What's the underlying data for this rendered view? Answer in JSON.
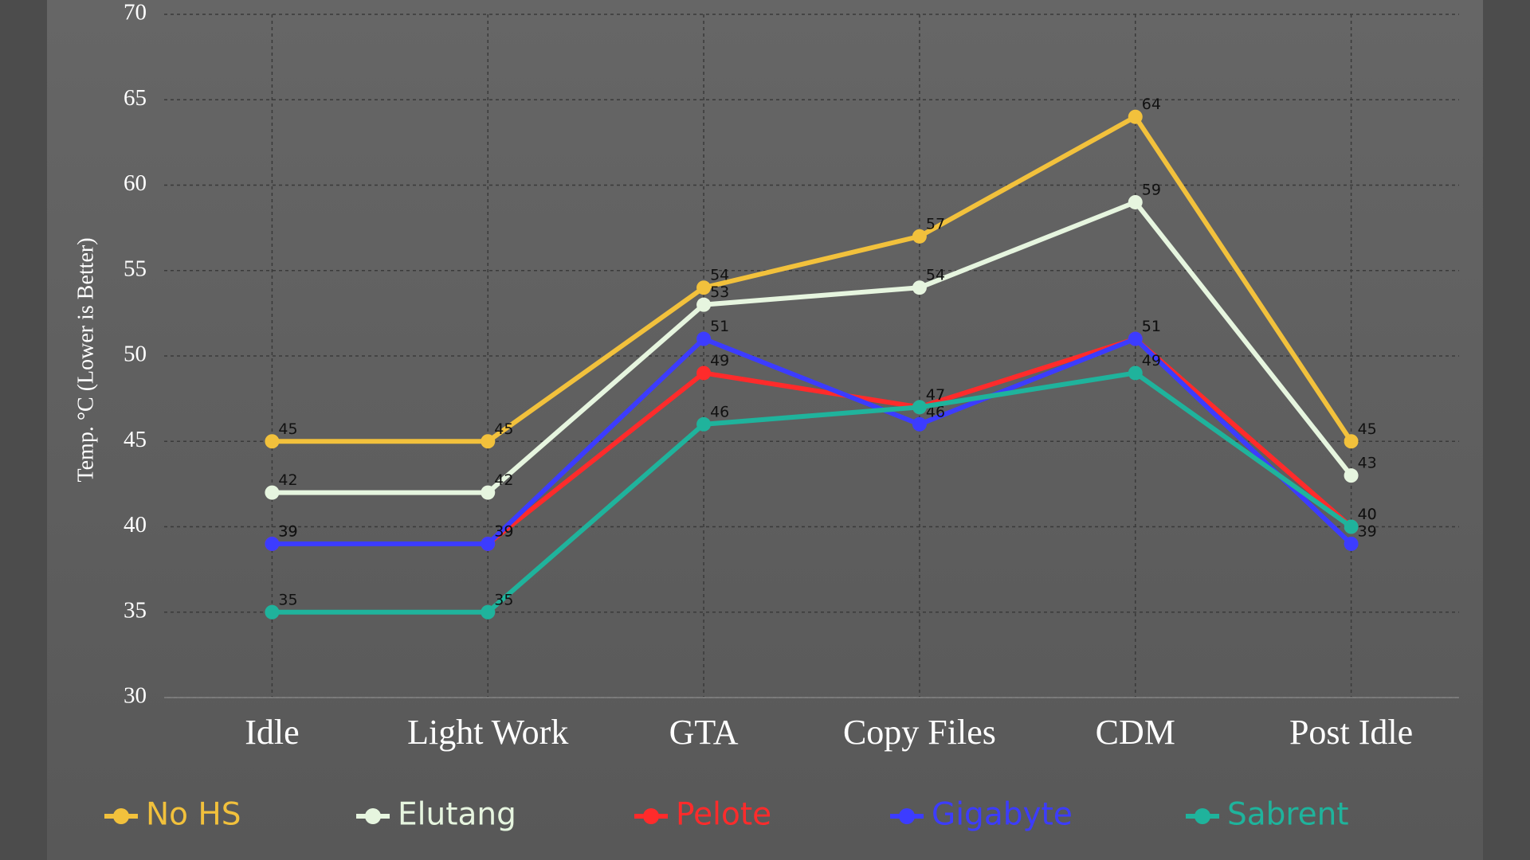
{
  "chart_data": {
    "type": "line",
    "y_label": "Temp. °C (Lower is Better)",
    "categories": [
      "Idle",
      "Light Work",
      "GTA",
      "Copy Files",
      "CDM",
      "Post Idle"
    ],
    "series": [
      {
        "name": "No HS",
        "color": "#f2c13c",
        "values": [
          45,
          45,
          54,
          57,
          64,
          45
        ]
      },
      {
        "name": "Elutang",
        "color": "#e6f5df",
        "values": [
          42,
          42,
          53,
          54,
          59,
          43
        ]
      },
      {
        "name": "Pelote",
        "color": "#ff2b2b",
        "values": [
          39,
          39,
          49,
          47,
          51,
          40
        ]
      },
      {
        "name": "Gigabyte",
        "color": "#3c3cff",
        "values": [
          39,
          39,
          51,
          46,
          51,
          39
        ]
      },
      {
        "name": "Sabrent",
        "color": "#1fb39c",
        "values": [
          35,
          35,
          46,
          47,
          49,
          40
        ]
      }
    ],
    "ylim": [
      30,
      70
    ],
    "yticks": [
      30,
      35,
      40,
      45,
      50,
      55,
      60,
      65,
      70
    ],
    "grid": true
  }
}
